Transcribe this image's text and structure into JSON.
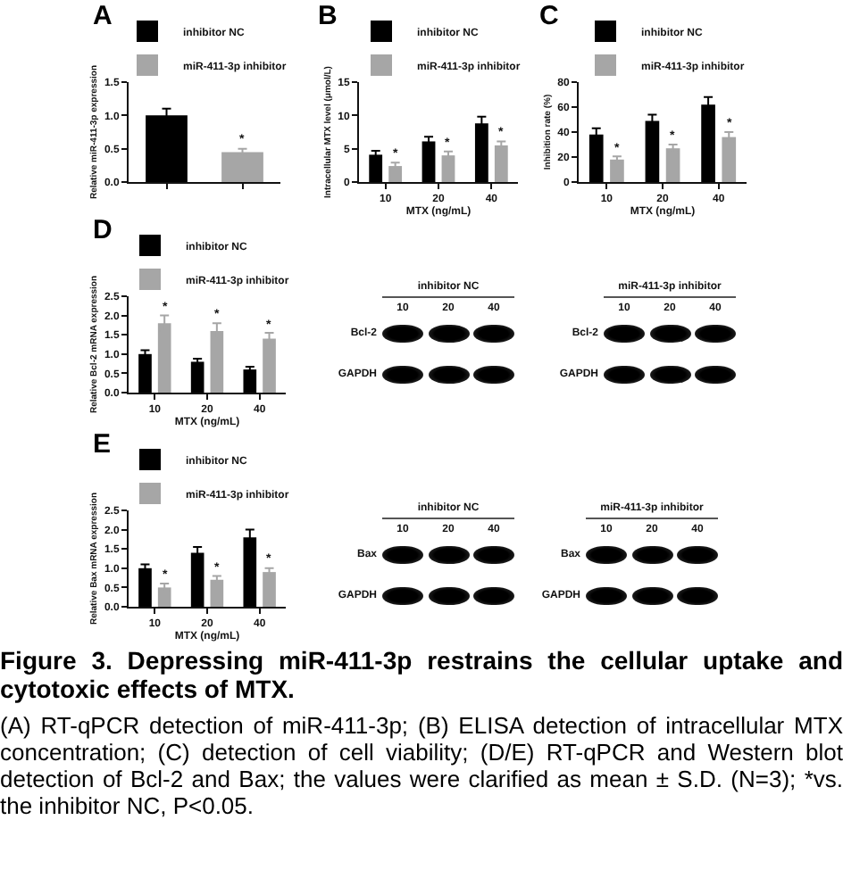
{
  "chart_data": [
    {
      "type": "bar",
      "title": "A",
      "ylabel": "Relative miR-411-3p expression",
      "categories": [
        null,
        null
      ],
      "tick_labels": "y",
      "legend": "top",
      "ylim": [
        0,
        1.5
      ],
      "yticks": [
        {
          "value": 0,
          "label": "0.0"
        },
        {
          "value": 0.5,
          "label": "0.5"
        },
        {
          "value": 1,
          "label": "1.0"
        },
        {
          "value": 1.5,
          "label": "1.5"
        }
      ],
      "series": [
        {
          "name": "inhibitor NC",
          "color": "#000000",
          "values": [
            1.0,
            null
          ],
          "errors": [
            0.1,
            null
          ]
        },
        {
          "name": "miR-411-3p inhibitor",
          "color": "#a6a6a6",
          "values": [
            null,
            0.45
          ],
          "errors": [
            null,
            0.05
          ],
          "value_labels": [
            null,
            "*"
          ]
        }
      ]
    },
    {
      "type": "bar",
      "title": "B",
      "xlabel": "MTX (ng/mL)",
      "ylabel": "Intracellular MTX level (μmol/L)",
      "categories": [
        "10",
        "20",
        "40"
      ],
      "legend": "top",
      "ylim": [
        0,
        15
      ],
      "yticks": [
        0,
        5,
        10,
        15
      ],
      "series": [
        {
          "name": "inhibitor NC",
          "color": "#000000",
          "values": [
            4.1,
            6.1,
            8.8
          ],
          "errors": [
            0.6,
            0.7,
            1.0
          ]
        },
        {
          "name": "miR-411-3p inhibitor",
          "color": "#a6a6a6",
          "values": [
            2.4,
            4.0,
            5.5
          ],
          "errors": [
            0.5,
            0.6,
            0.6
          ],
          "value_labels": [
            "*",
            "*",
            "*"
          ]
        }
      ]
    },
    {
      "type": "bar",
      "title": "C",
      "xlabel": "MTX (ng/mL)",
      "ylabel": "Inhibition rate (%)",
      "categories": [
        "10",
        "20",
        "40"
      ],
      "legend": "top",
      "ylim": [
        0,
        80
      ],
      "yticks": [
        0,
        20,
        40,
        60,
        80
      ],
      "series": [
        {
          "name": "inhibitor NC",
          "color": "#000000",
          "values": [
            38,
            49,
            62
          ],
          "errors": [
            5,
            5,
            6
          ]
        },
        {
          "name": "miR-411-3p inhibitor",
          "color": "#a6a6a6",
          "values": [
            18,
            27,
            36
          ],
          "errors": [
            2.5,
            3,
            4
          ],
          "value_labels": [
            "*",
            "*",
            "*"
          ]
        }
      ]
    },
    {
      "type": "bar",
      "title": "D",
      "xlabel": "MTX (ng/mL)",
      "ylabel": "Relative Bcl-2 mRNA expression",
      "categories": [
        "10",
        "20",
        "40"
      ],
      "legend": "top",
      "ylim": [
        0,
        2.5
      ],
      "yticks": [
        {
          "value": 0,
          "label": "0.0"
        },
        {
          "value": 0.5,
          "label": "0.5"
        },
        {
          "value": 1,
          "label": "1.0"
        },
        {
          "value": 1.5,
          "label": "1.5"
        },
        {
          "value": 2,
          "label": "2.0"
        },
        {
          "value": 2.5,
          "label": "2.5"
        }
      ],
      "series": [
        {
          "name": "inhibitor NC",
          "color": "#000000",
          "values": [
            1.0,
            0.8,
            0.6
          ],
          "errors": [
            0.1,
            0.08,
            0.07
          ]
        },
        {
          "name": "miR-411-3p inhibitor",
          "color": "#a6a6a6",
          "values": [
            1.8,
            1.6,
            1.4
          ],
          "errors": [
            0.2,
            0.2,
            0.15
          ],
          "value_labels": [
            "*",
            "*",
            "*"
          ]
        }
      ]
    },
    {
      "type": "other",
      "title": "inhibitor NC",
      "categories": [
        "10",
        "20",
        "40"
      ],
      "y_categories": [
        "Bcl-2",
        "GAPDH"
      ]
    },
    {
      "type": "other",
      "title": "miR-411-3p inhibitor",
      "categories": [
        "10",
        "20",
        "40"
      ],
      "y_categories": [
        "Bcl-2",
        "GAPDH"
      ]
    },
    {
      "type": "bar",
      "title": "E",
      "xlabel": "MTX (ng/mL)",
      "ylabel": "Relative Bax mRNA expression",
      "categories": [
        "10",
        "20",
        "40"
      ],
      "legend": "top",
      "ylim": [
        0,
        2.5
      ],
      "yticks": [
        {
          "value": 0,
          "label": "0.0"
        },
        {
          "value": 0.5,
          "label": "0.5"
        },
        {
          "value": 1,
          "label": "1.0"
        },
        {
          "value": 1.5,
          "label": "1.5"
        },
        {
          "value": 2,
          "label": "2.0"
        },
        {
          "value": 2.5,
          "label": "2.5"
        }
      ],
      "series": [
        {
          "name": "inhibitor NC",
          "color": "#000000",
          "values": [
            1.0,
            1.4,
            1.8
          ],
          "errors": [
            0.1,
            0.15,
            0.2
          ]
        },
        {
          "name": "miR-411-3p inhibitor",
          "color": "#a6a6a6",
          "values": [
            0.5,
            0.7,
            0.9
          ],
          "errors": [
            0.1,
            0.1,
            0.1
          ],
          "value_labels": [
            "*",
            "*",
            "*"
          ]
        }
      ]
    },
    {
      "type": "other",
      "title": "inhibitor NC",
      "categories": [
        "10",
        "20",
        "40"
      ],
      "y_categories": [
        "Bax",
        "GAPDH"
      ]
    },
    {
      "type": "other",
      "title": "miR-411-3p inhibitor",
      "categories": [
        "10",
        "20",
        "40"
      ],
      "y_categories": [
        "Bax",
        "GAPDH"
      ]
    },
    {
      "type": "other",
      "title": "Figure 3. Depressing miR-411-3p restrains the cellular uptake and cytotoxic effects of MTX.",
      "annotations": [
        "(A) RT-qPCR detection of miR-411-3p; (B) ELISA detection of intracellular MTX concentration; (C) detection of cell viability; (D/E) RT-qPCR and Western blot detection of Bcl-2 and Bax; the values were clarified as mean ± S.D. (N=3); *vs. the inhibitor NC, P<0.05."
      ]
    }
  ]
}
